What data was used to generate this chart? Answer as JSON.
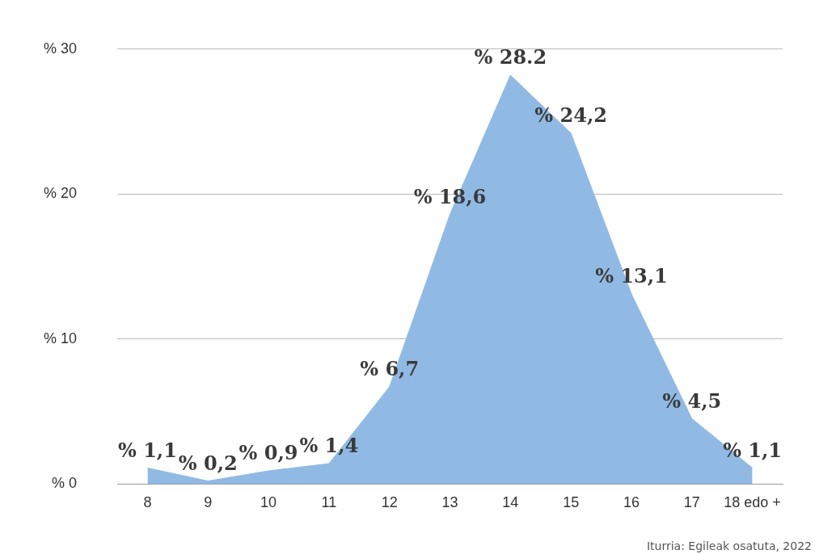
{
  "chart_data": {
    "type": "area",
    "categories": [
      "8",
      "9",
      "10",
      "11",
      "12",
      "13",
      "14",
      "15",
      "16",
      "17",
      "18 edo +"
    ],
    "series": [
      {
        "color": "#90bae4",
        "values": [
          1.1,
          0.2,
          0.9,
          1.4,
          6.7,
          18.6,
          28.2,
          24.2,
          13.1,
          4.5,
          1.1
        ],
        "value_labels": [
          "% 1,1",
          "% 0,2",
          "% 0,9",
          "% 1,4",
          "% 6,7",
          "% 18,6",
          "% 28.2",
          "% 24,2",
          "% 13,1",
          "% 4,5",
          "% 1,1"
        ]
      }
    ],
    "ylim": [
      0,
      30
    ],
    "yticks": [
      {
        "value": 0,
        "label": "% 0"
      },
      {
        "value": 10,
        "label": "% 10"
      },
      {
        "value": 20,
        "label": "% 20"
      },
      {
        "value": 30,
        "label": "% 30"
      }
    ],
    "grid": "y",
    "legend": false,
    "annotations": [
      "Iturria: Egileak osatuta, 2022"
    ]
  }
}
